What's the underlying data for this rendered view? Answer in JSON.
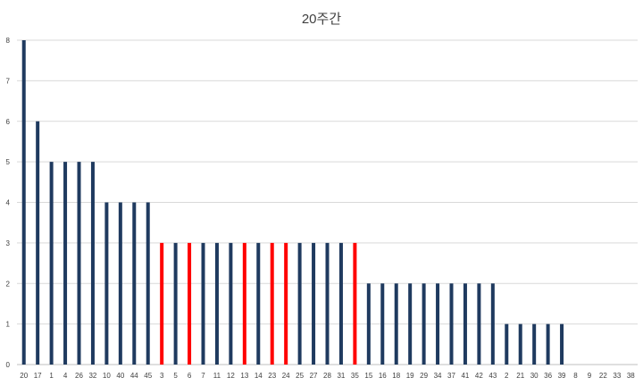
{
  "chart_data": {
    "type": "bar",
    "title": "20주간",
    "xlabel": "",
    "ylabel": "",
    "ylim": [
      0,
      8
    ],
    "yticks": [
      0,
      1,
      2,
      3,
      4,
      5,
      6,
      7,
      8
    ],
    "grid": true,
    "categories": [
      "20",
      "17",
      "1",
      "4",
      "26",
      "32",
      "10",
      "40",
      "44",
      "45",
      "3",
      "5",
      "6",
      "7",
      "11",
      "12",
      "13",
      "14",
      "23",
      "24",
      "25",
      "27",
      "28",
      "31",
      "35",
      "15",
      "16",
      "18",
      "19",
      "29",
      "34",
      "37",
      "41",
      "42",
      "43",
      "2",
      "21",
      "30",
      "36",
      "39",
      "8",
      "9",
      "22",
      "33",
      "38"
    ],
    "values": [
      8,
      6,
      5,
      5,
      5,
      5,
      4,
      4,
      4,
      4,
      3,
      3,
      3,
      3,
      3,
      3,
      3,
      3,
      3,
      3,
      3,
      3,
      3,
      3,
      3,
      2,
      2,
      2,
      2,
      2,
      2,
      2,
      2,
      2,
      2,
      1,
      1,
      1,
      1,
      1,
      0,
      0,
      0,
      0,
      0
    ],
    "highlighted": [
      "3",
      "6",
      "13",
      "23",
      "24",
      "35"
    ],
    "colors": {
      "default": "#1f3a5f",
      "highlight": "#ff0000",
      "grid": "#d9d9d9",
      "axis": "#bfbfbf"
    }
  }
}
